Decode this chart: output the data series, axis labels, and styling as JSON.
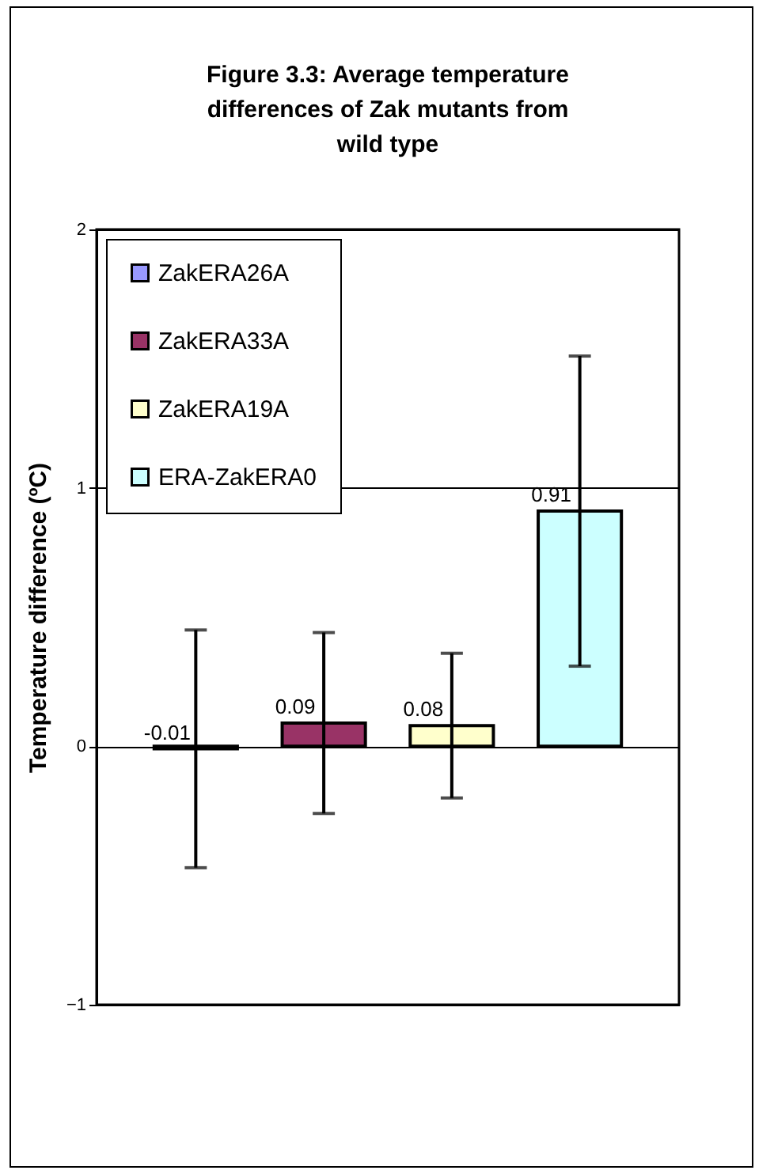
{
  "chart_data": {
    "type": "bar",
    "title": "Figure 3.3: Average temperature differences of Zak mutants from wild type",
    "ylabel": "Temperature difference (ºC)",
    "categories": [
      null
    ],
    "series": [
      {
        "name": "ZakERA26A",
        "color": "#9999ff",
        "values": [
          -0.01
        ],
        "errors": [
          0.46
        ]
      },
      {
        "name": "ZakERA33A",
        "color": "#993366",
        "values": [
          0.09
        ],
        "errors": [
          0.35
        ]
      },
      {
        "name": "ZakERA19A",
        "color": "#ffffcc",
        "values": [
          0.08
        ],
        "errors": [
          0.28
        ]
      },
      {
        "name": "ERA-ZakERA0",
        "color": "#ccffff",
        "values": [
          0.91
        ],
        "errors": [
          0.6
        ]
      }
    ],
    "ylim": [
      -1,
      2
    ],
    "yticks": [
      -1,
      0,
      1,
      2
    ],
    "grid": "y",
    "legend": "top left",
    "data_labels": true,
    "tick_labels": "y"
  }
}
